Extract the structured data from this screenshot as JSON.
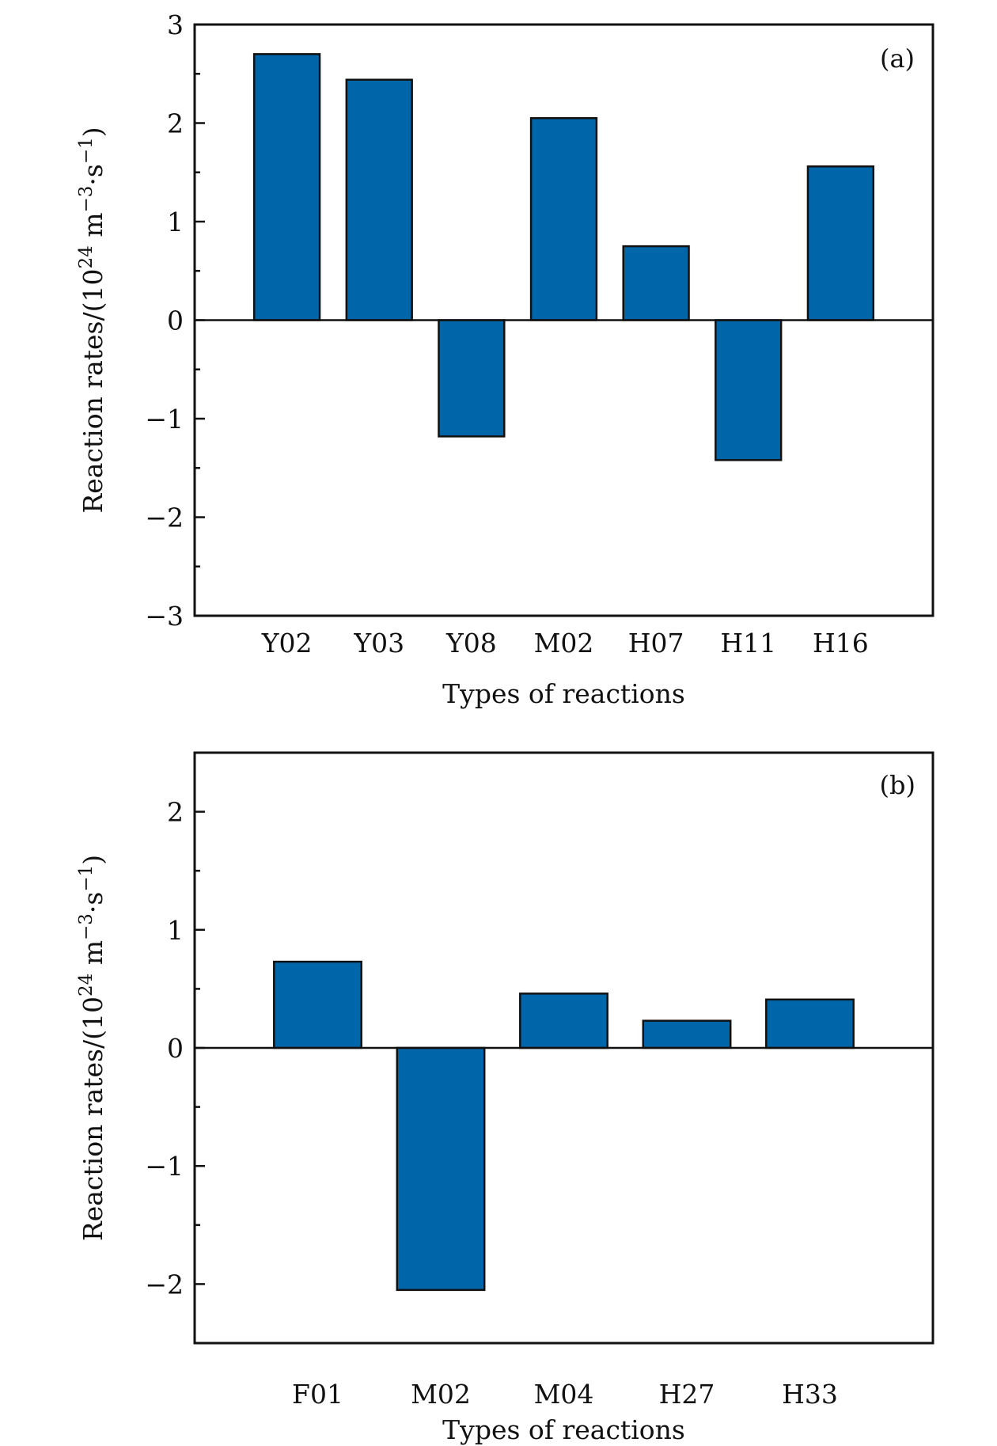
{
  "chart_data": [
    {
      "type": "bar",
      "panel_label": "(a)",
      "categories": [
        "Y02",
        "Y03",
        "Y08",
        "M02",
        "H07",
        "H11",
        "H16"
      ],
      "values": [
        2.7,
        2.44,
        -1.18,
        2.05,
        0.75,
        -1.42,
        1.56
      ],
      "xlabel": "Types of reactions",
      "ylabel": "Reaction rates/(10^24 m^-3·s^-1)",
      "ylabel_parts": {
        "main": "Reaction rates/(10",
        "exp1": "24",
        "mid": " m",
        "exp2": "−3",
        "mid2": "·s",
        "exp3": "−1",
        "end": ")"
      },
      "ylim": [
        -3,
        3
      ],
      "yticks": [
        -3,
        -2,
        -1,
        0,
        1,
        2,
        3
      ],
      "ytick_labels": [
        "−3",
        "−2",
        "−1",
        "0",
        "1",
        "2",
        "3"
      ],
      "minor_ytick_step": 0.5,
      "bar_color": "#0066aa",
      "grid": false,
      "zero_line": true
    },
    {
      "type": "bar",
      "panel_label": "(b)",
      "categories": [
        "F01",
        "M02",
        "M04",
        "H27",
        "H33"
      ],
      "values": [
        0.73,
        -2.05,
        0.46,
        0.23,
        0.41
      ],
      "xlabel": "Types of reactions",
      "ylabel": "Reaction rates/(10^24 m^-3·s^-1)",
      "ylabel_parts": {
        "main": "Reaction rates/(10",
        "exp1": "24",
        "mid": " m",
        "exp2": "−3",
        "mid2": "·s",
        "exp3": "−1",
        "end": ")"
      },
      "ylim": [
        -2.5,
        2.5
      ],
      "yticks": [
        -2,
        -1,
        0,
        1,
        2
      ],
      "ytick_labels": [
        "−2",
        "−1",
        "0",
        "1",
        "2"
      ],
      "minor_ytick_step": 0.5,
      "bar_color": "#0066aa",
      "grid": false,
      "zero_line": true
    }
  ]
}
